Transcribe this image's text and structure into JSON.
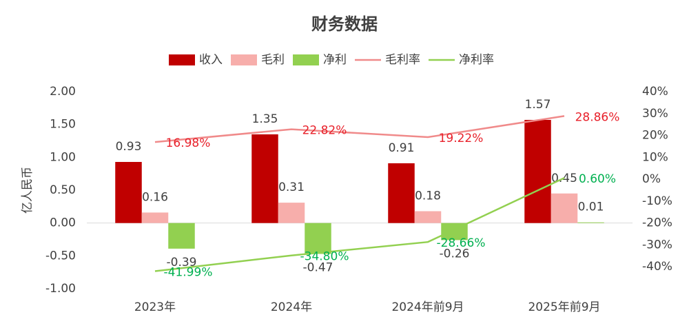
{
  "chart_data": {
    "type": "combo",
    "title": "财务数据",
    "ylabel": "亿人民币",
    "categories": [
      "2023年",
      "2024年",
      "2024年前9月",
      "2025年前9月"
    ],
    "series": [
      {
        "name": "收入",
        "type": "bar",
        "color": "#c00000",
        "values": [
          0.93,
          1.35,
          0.91,
          1.57
        ]
      },
      {
        "name": "毛利",
        "type": "bar",
        "color": "#f7aeab",
        "values": [
          0.16,
          0.31,
          0.18,
          0.45
        ]
      },
      {
        "name": "净利",
        "type": "bar",
        "color": "#92d050",
        "values": [
          -0.39,
          -0.47,
          -0.26,
          0.01
        ]
      },
      {
        "name": "毛利率",
        "type": "line",
        "axis": "y2",
        "color": "#f08a8a",
        "label_color": "#e8202a",
        "values": [
          16.98,
          22.82,
          19.22,
          28.86
        ],
        "value_labels": [
          "16.98%",
          "22.82%",
          "19.22%",
          "28.86%"
        ]
      },
      {
        "name": "净利率",
        "type": "line",
        "axis": "y2",
        "color": "#92d050",
        "label_color": "#00b050",
        "values": [
          -41.99,
          -34.8,
          -28.66,
          0.6
        ],
        "value_labels": [
          "-41.99%",
          "-34.80%",
          "-28.66%",
          "0.60%"
        ]
      }
    ],
    "ylim": [
      -1,
      2
    ],
    "yticks": [
      {
        "value": -1,
        "label": "-1.00"
      },
      {
        "value": -0.5,
        "label": "-0.50"
      },
      {
        "value": 0,
        "label": "0.00"
      },
      {
        "value": 0.5,
        "label": "0.50"
      },
      {
        "value": 1,
        "label": "1.00"
      },
      {
        "value": 1.5,
        "label": "1.50"
      },
      {
        "value": 2,
        "label": "2.00"
      }
    ],
    "y2lim": [
      -50,
      40
    ],
    "y2ticks": [
      {
        "value": -40,
        "label": "-40%"
      },
      {
        "value": -30,
        "label": "-30%"
      },
      {
        "value": -20,
        "label": "-20%"
      },
      {
        "value": -10,
        "label": "-10%"
      },
      {
        "value": 0,
        "label": "0%"
      },
      {
        "value": 10,
        "label": "10%"
      },
      {
        "value": 20,
        "label": "20%"
      },
      {
        "value": 30,
        "label": "30%"
      },
      {
        "value": 40,
        "label": "40%"
      }
    ],
    "grid": false,
    "legend": "top"
  }
}
